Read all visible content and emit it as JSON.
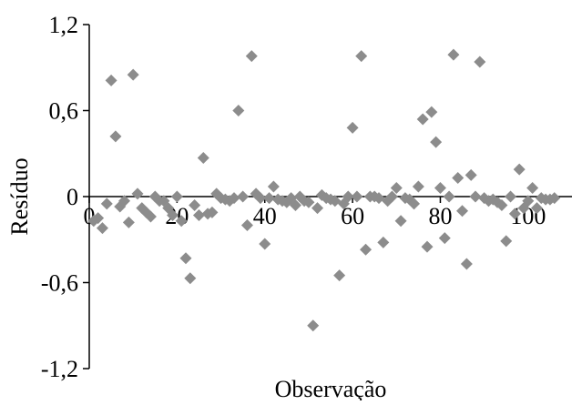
{
  "chart_data": {
    "type": "scatter",
    "title": "",
    "xlabel": "Observação",
    "ylabel": "Resíduo",
    "xlim": [
      0,
      110
    ],
    "ylim": [
      -1.2,
      1.2
    ],
    "x_ticks": [
      0,
      20,
      40,
      60,
      80,
      100
    ],
    "x_tick_labels": [
      "0",
      "20",
      "40",
      "60",
      "80",
      "100"
    ],
    "y_ticks": [
      1.2,
      0.6,
      0,
      -0.6,
      -1.2
    ],
    "y_tick_labels": [
      "1,2",
      "0,6",
      "0",
      "-0,6",
      "-1,2"
    ],
    "grid": false,
    "legend": "none",
    "marker": "diamond",
    "marker_color": "#8c8c8c",
    "series": [
      {
        "points": [
          [
            1,
            -0.17
          ],
          [
            2,
            -0.15
          ],
          [
            3,
            -0.22
          ],
          [
            4,
            -0.05
          ],
          [
            5,
            0.81
          ],
          [
            6,
            0.42
          ],
          [
            7,
            -0.07
          ],
          [
            8,
            -0.03
          ],
          [
            9,
            -0.18
          ],
          [
            10,
            0.85
          ],
          [
            11,
            0.02
          ],
          [
            12,
            -0.08
          ],
          [
            13,
            -0.11
          ],
          [
            14,
            -0.14
          ],
          [
            15,
            0.0
          ],
          [
            16,
            -0.03
          ],
          [
            17,
            -0.03
          ],
          [
            18,
            -0.08
          ],
          [
            19,
            -0.13
          ],
          [
            20,
            0.0
          ],
          [
            21,
            -0.17
          ],
          [
            22,
            -0.43
          ],
          [
            23,
            -0.57
          ],
          [
            24,
            -0.06
          ],
          [
            25,
            -0.13
          ],
          [
            26,
            0.27
          ],
          [
            27,
            -0.12
          ],
          [
            28,
            -0.11
          ],
          [
            29,
            0.02
          ],
          [
            30,
            -0.01
          ],
          [
            31,
            -0.02
          ],
          [
            32,
            -0.03
          ],
          [
            33,
            -0.01
          ],
          [
            34,
            0.6
          ],
          [
            35,
            0.0
          ],
          [
            36,
            -0.2
          ],
          [
            37,
            0.98
          ],
          [
            38,
            0.02
          ],
          [
            39,
            -0.01
          ],
          [
            40,
            -0.33
          ],
          [
            41,
            -0.01
          ],
          [
            42,
            0.07
          ],
          [
            43,
            -0.02
          ],
          [
            44,
            -0.03
          ],
          [
            45,
            -0.04
          ],
          [
            46,
            -0.01
          ],
          [
            47,
            -0.06
          ],
          [
            48,
            0.0
          ],
          [
            49,
            -0.03
          ],
          [
            50,
            -0.04
          ],
          [
            51,
            -0.9
          ],
          [
            52,
            -0.08
          ],
          [
            53,
            0.01
          ],
          [
            54,
            -0.01
          ],
          [
            55,
            -0.02
          ],
          [
            56,
            -0.03
          ],
          [
            57,
            -0.55
          ],
          [
            58,
            -0.05
          ],
          [
            59,
            0.0
          ],
          [
            60,
            0.48
          ],
          [
            61,
            0.0
          ],
          [
            62,
            0.98
          ],
          [
            63,
            -0.37
          ],
          [
            64,
            0.0
          ],
          [
            65,
            0.0
          ],
          [
            66,
            -0.01
          ],
          [
            67,
            -0.32
          ],
          [
            68,
            -0.03
          ],
          [
            69,
            0.0
          ],
          [
            70,
            0.06
          ],
          [
            71,
            -0.17
          ],
          [
            72,
            -0.01
          ],
          [
            73,
            -0.02
          ],
          [
            74,
            -0.05
          ],
          [
            75,
            0.07
          ],
          [
            76,
            0.54
          ],
          [
            77,
            -0.35
          ],
          [
            78,
            0.59
          ],
          [
            79,
            0.38
          ],
          [
            80,
            0.06
          ],
          [
            81,
            -0.29
          ],
          [
            82,
            0.0
          ],
          [
            83,
            0.99
          ],
          [
            84,
            0.13
          ],
          [
            85,
            -0.1
          ],
          [
            86,
            -0.47
          ],
          [
            87,
            0.15
          ],
          [
            88,
            0.0
          ],
          [
            89,
            0.94
          ],
          [
            90,
            -0.01
          ],
          [
            91,
            -0.03
          ],
          [
            92,
            -0.02
          ],
          [
            93,
            -0.04
          ],
          [
            94,
            -0.06
          ],
          [
            95,
            -0.31
          ],
          [
            96,
            0.0
          ],
          [
            97,
            -0.12
          ],
          [
            98,
            0.19
          ],
          [
            99,
            -0.08
          ],
          [
            100,
            -0.03
          ],
          [
            101,
            0.06
          ],
          [
            102,
            -0.08
          ],
          [
            103,
            -0.01
          ],
          [
            104,
            -0.02
          ],
          [
            105,
            -0.02
          ],
          [
            106,
            -0.01
          ]
        ]
      }
    ]
  }
}
